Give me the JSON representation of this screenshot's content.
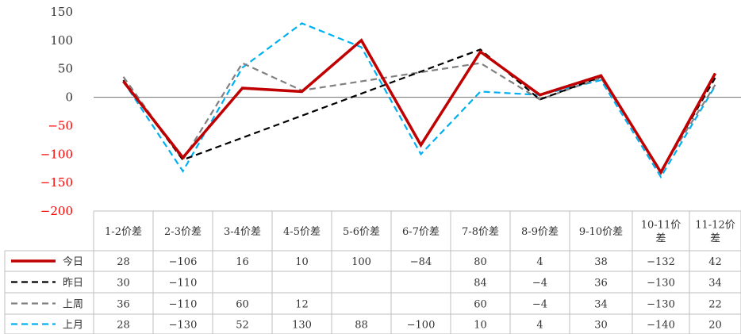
{
  "chart_data": {
    "type": "line",
    "categories": [
      "1-2价差",
      "2-3价差",
      "3-4价差",
      "4-5价差",
      "5-6价差",
      "6-7价差",
      "7-8价差",
      "8-9价差",
      "9-10价差",
      "10-11价差",
      "11-12价差"
    ],
    "category_lines": [
      [
        "1-2价差"
      ],
      [
        "2-3价差"
      ],
      [
        "3-4价差"
      ],
      [
        "4-5价差"
      ],
      [
        "5-6价差"
      ],
      [
        "6-7价差"
      ],
      [
        "7-8价差"
      ],
      [
        "8-9价差"
      ],
      [
        "9-10价差"
      ],
      [
        "10-11价",
        "差"
      ],
      [
        "11-12价",
        "差"
      ]
    ],
    "ylim": [
      -200,
      150
    ],
    "yticks": [
      150,
      100,
      50,
      0,
      -50,
      -100,
      -150,
      -200
    ],
    "yticks_text": [
      "150",
      "100",
      "50",
      "0",
      "−50",
      "−100",
      "−150",
      "−200"
    ],
    "negative_tick_color": "#ff0000",
    "positive_tick_color": "#333333",
    "zero_line_color": "#808080",
    "grid": false,
    "legend": "table-below",
    "series": [
      {
        "name": "今日",
        "color": "#c00000",
        "style": "solid",
        "values": [
          28,
          -106,
          16,
          10,
          100,
          -84,
          80,
          4,
          38,
          -132,
          42
        ],
        "labels": [
          "28",
          "−106",
          "16",
          "10",
          "100",
          "−84",
          "80",
          "4",
          "38",
          "−132",
          "42"
        ]
      },
      {
        "name": "昨日",
        "color": "#000000",
        "style": "dashed",
        "values": [
          30,
          -110,
          null,
          null,
          null,
          null,
          84,
          -4,
          36,
          -130,
          34
        ],
        "labels": [
          "30",
          "−110",
          "",
          "",
          "",
          "",
          "84",
          "−4",
          "36",
          "−130",
          "34"
        ]
      },
      {
        "name": "上周",
        "color": "#808080",
        "style": "dashed",
        "values": [
          36,
          -110,
          60,
          12,
          null,
          null,
          60,
          -4,
          34,
          -130,
          22
        ],
        "labels": [
          "36",
          "−110",
          "60",
          "12",
          "",
          "",
          "60",
          "−4",
          "34",
          "−130",
          "22"
        ]
      },
      {
        "name": "上月",
        "color": "#00b0f0",
        "style": "dashed",
        "values": [
          28,
          -130,
          52,
          130,
          88,
          -100,
          10,
          4,
          30,
          -140,
          20
        ],
        "labels": [
          "28",
          "−130",
          "52",
          "130",
          "88",
          "−100",
          "10",
          "4",
          "30",
          "−140",
          "20"
        ]
      }
    ]
  }
}
